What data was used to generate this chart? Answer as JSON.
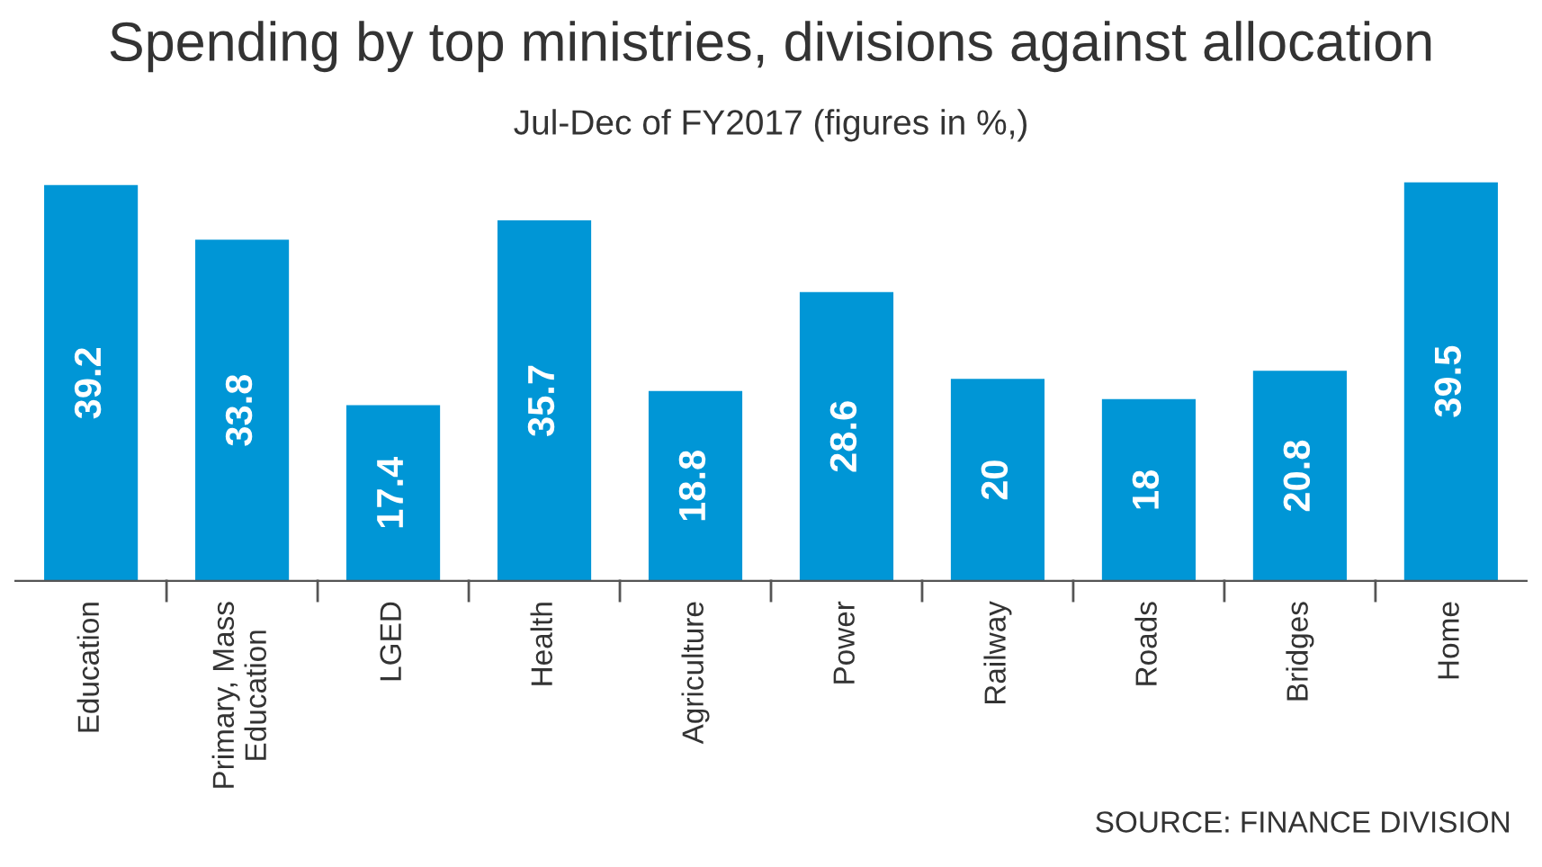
{
  "chart_data": {
    "type": "bar",
    "title": "Spending by top ministries, divisions against allocation",
    "subtitle": "Jul-Dec of FY2017 (figures in %,)",
    "categories": [
      "Education",
      "Primary, Mass\nEducation",
      "LGED",
      "Health",
      "Agriculture",
      "Power",
      "Railway",
      "Roads",
      "Bridges",
      "Home"
    ],
    "values": [
      39.2,
      33.8,
      17.4,
      35.7,
      18.8,
      28.6,
      20,
      18,
      20.8,
      39.5
    ],
    "color": "#0096d6",
    "data_labels": true,
    "grid": false,
    "legend": false,
    "annotations": [
      "SOURCE: FINANCE DIVISION"
    ]
  }
}
